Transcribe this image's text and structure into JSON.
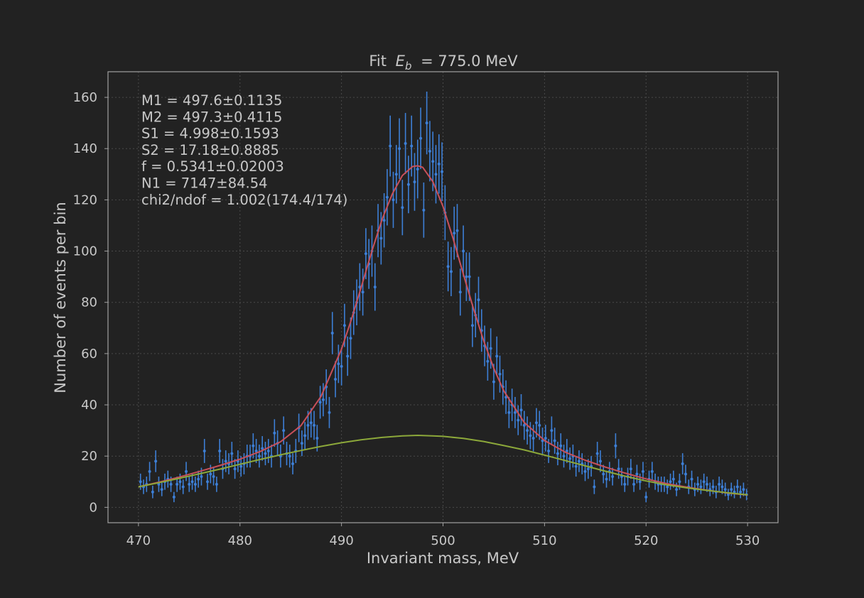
{
  "chart_data": {
    "type": "scatter",
    "title_prefix": "Fit",
    "title_sym": "E",
    "title_sub": "b",
    "title_suffix": "= 775.0 MeV",
    "xlabel": "Invariant mass, MeV",
    "ylabel": "Number of events per bin",
    "xlim": [
      467,
      533
    ],
    "ylim": [
      -6,
      170
    ],
    "xticks": [
      470,
      480,
      490,
      500,
      510,
      520,
      530
    ],
    "yticks": [
      0,
      20,
      40,
      60,
      80,
      100,
      120,
      140,
      160
    ],
    "grid": true,
    "annotations": [
      "M1 = 497.6±0.1135",
      "M2 = 497.3±0.4115",
      "S1 = 4.998±0.1593",
      "S2 = 17.18±0.8885",
      "f = 0.5341±0.02003",
      "N1 =  7147±84.54",
      "chi2/ndof = 1.002(174.4/174)"
    ],
    "series": [
      {
        "kind": "errorbar",
        "color": "#3d7fd6",
        "points": [
          [
            470.2,
            10
          ],
          [
            470.5,
            8
          ],
          [
            470.8,
            9
          ],
          [
            471.1,
            14
          ],
          [
            471.4,
            6
          ],
          [
            471.7,
            18
          ],
          [
            472.0,
            9
          ],
          [
            472.3,
            7
          ],
          [
            472.6,
            10
          ],
          [
            472.9,
            11
          ],
          [
            473.2,
            9
          ],
          [
            473.5,
            4
          ],
          [
            473.8,
            9
          ],
          [
            474.1,
            10
          ],
          [
            474.4,
            8
          ],
          [
            474.7,
            14
          ],
          [
            475.0,
            9
          ],
          [
            475.3,
            10
          ],
          [
            475.6,
            9
          ],
          [
            475.9,
            11
          ],
          [
            476.2,
            12
          ],
          [
            476.5,
            22
          ],
          [
            476.8,
            10
          ],
          [
            477.1,
            13
          ],
          [
            477.4,
            12
          ],
          [
            477.7,
            9
          ],
          [
            478.0,
            22
          ],
          [
            478.3,
            15
          ],
          [
            478.6,
            18
          ],
          [
            478.9,
            17
          ],
          [
            479.2,
            21
          ],
          [
            479.5,
            15
          ],
          [
            479.8,
            18
          ],
          [
            480.1,
            16
          ],
          [
            480.4,
            17
          ],
          [
            480.7,
            20
          ],
          [
            481.0,
            20
          ],
          [
            481.3,
            24
          ],
          [
            481.6,
            22
          ],
          [
            481.9,
            20
          ],
          [
            482.2,
            23
          ],
          [
            482.5,
            21
          ],
          [
            482.8,
            22
          ],
          [
            483.1,
            20
          ],
          [
            483.4,
            29
          ],
          [
            483.7,
            25
          ],
          [
            484.0,
            20
          ],
          [
            484.3,
            30
          ],
          [
            484.6,
            21
          ],
          [
            484.9,
            20
          ],
          [
            485.2,
            17
          ],
          [
            485.5,
            22
          ],
          [
            485.8,
            31
          ],
          [
            486.1,
            25
          ],
          [
            486.4,
            28
          ],
          [
            486.7,
            32
          ],
          [
            487.0,
            33
          ],
          [
            487.3,
            32
          ],
          [
            487.6,
            27
          ],
          [
            487.9,
            41
          ],
          [
            488.2,
            42
          ],
          [
            488.5,
            47
          ],
          [
            488.8,
            37
          ],
          [
            489.1,
            68
          ],
          [
            489.4,
            50
          ],
          [
            489.7,
            56
          ],
          [
            490.0,
            55
          ],
          [
            490.3,
            71
          ],
          [
            490.6,
            59
          ],
          [
            490.9,
            66
          ],
          [
            491.2,
            76
          ],
          [
            491.5,
            80
          ],
          [
            491.8,
            86
          ],
          [
            492.1,
            84
          ],
          [
            492.4,
            99
          ],
          [
            492.7,
            95
          ],
          [
            493.0,
            100
          ],
          [
            493.3,
            86
          ],
          [
            493.6,
            108
          ],
          [
            493.9,
            105
          ],
          [
            494.2,
            112
          ],
          [
            494.5,
            121
          ],
          [
            494.8,
            141
          ],
          [
            495.1,
            120
          ],
          [
            495.4,
            130
          ],
          [
            495.7,
            140
          ],
          [
            496.0,
            117
          ],
          [
            496.3,
            142
          ],
          [
            496.6,
            126
          ],
          [
            496.9,
            141
          ],
          [
            497.2,
            127
          ],
          [
            497.5,
            132
          ],
          [
            497.8,
            144
          ],
          [
            498.1,
            116
          ],
          [
            498.4,
            150
          ],
          [
            498.7,
            139
          ],
          [
            499.0,
            135
          ],
          [
            499.3,
            130
          ],
          [
            499.6,
            134
          ],
          [
            499.9,
            131
          ],
          [
            500.2,
            115
          ],
          [
            500.5,
            94
          ],
          [
            500.8,
            92
          ],
          [
            501.1,
            107
          ],
          [
            501.4,
            108
          ],
          [
            501.7,
            84
          ],
          [
            502.0,
            100
          ],
          [
            502.3,
            90
          ],
          [
            502.6,
            90
          ],
          [
            502.9,
            71
          ],
          [
            503.2,
            75
          ],
          [
            503.5,
            81
          ],
          [
            503.8,
            69
          ],
          [
            504.1,
            63
          ],
          [
            504.4,
            57
          ],
          [
            504.7,
            62
          ],
          [
            505.0,
            49
          ],
          [
            505.3,
            59
          ],
          [
            505.6,
            52
          ],
          [
            505.9,
            47
          ],
          [
            506.2,
            43
          ],
          [
            506.5,
            37
          ],
          [
            506.8,
            40
          ],
          [
            507.1,
            37
          ],
          [
            507.4,
            34
          ],
          [
            507.7,
            38
          ],
          [
            508.0,
            32
          ],
          [
            508.3,
            30
          ],
          [
            508.6,
            28
          ],
          [
            508.9,
            27
          ],
          [
            509.2,
            33
          ],
          [
            509.5,
            32
          ],
          [
            509.8,
            26
          ],
          [
            510.1,
            27
          ],
          [
            510.4,
            22
          ],
          [
            510.7,
            30
          ],
          [
            511.0,
            26
          ],
          [
            511.3,
            21
          ],
          [
            511.6,
            24
          ],
          [
            511.9,
            20
          ],
          [
            512.2,
            22
          ],
          [
            512.5,
            19
          ],
          [
            512.8,
            20
          ],
          [
            513.1,
            16
          ],
          [
            513.4,
            18
          ],
          [
            513.7,
            17
          ],
          [
            514.0,
            14
          ],
          [
            514.3,
            15
          ],
          [
            514.6,
            16
          ],
          [
            514.9,
            8
          ],
          [
            515.2,
            21
          ],
          [
            515.5,
            18
          ],
          [
            515.8,
            13
          ],
          [
            516.1,
            11
          ],
          [
            516.4,
            14
          ],
          [
            516.7,
            12
          ],
          [
            517.0,
            24
          ],
          [
            517.3,
            15
          ],
          [
            517.6,
            12
          ],
          [
            517.9,
            9
          ],
          [
            518.2,
            12
          ],
          [
            518.5,
            15
          ],
          [
            518.8,
            9
          ],
          [
            519.1,
            13
          ],
          [
            519.4,
            10
          ],
          [
            519.7,
            14
          ],
          [
            520.0,
            4
          ],
          [
            520.3,
            11
          ],
          [
            520.6,
            14
          ],
          [
            520.9,
            10
          ],
          [
            521.2,
            9
          ],
          [
            521.5,
            9
          ],
          [
            521.8,
            9
          ],
          [
            522.1,
            8
          ],
          [
            522.4,
            10
          ],
          [
            522.7,
            11
          ],
          [
            523.0,
            7
          ],
          [
            523.3,
            10
          ],
          [
            523.6,
            17
          ],
          [
            523.9,
            13
          ],
          [
            524.2,
            8
          ],
          [
            524.5,
            11
          ],
          [
            524.8,
            7
          ],
          [
            525.1,
            9
          ],
          [
            525.4,
            8
          ],
          [
            525.7,
            10
          ],
          [
            526.0,
            9
          ],
          [
            526.3,
            7
          ],
          [
            526.6,
            8
          ],
          [
            526.9,
            6
          ],
          [
            527.2,
            9
          ],
          [
            527.5,
            8
          ],
          [
            527.8,
            7
          ],
          [
            528.1,
            5
          ],
          [
            528.4,
            7
          ],
          [
            528.7,
            6
          ],
          [
            529.0,
            8
          ],
          [
            529.3,
            6
          ],
          [
            529.6,
            7
          ],
          [
            529.9,
            5
          ]
        ]
      },
      {
        "kind": "curve",
        "color": "#c8505a",
        "x": [
          470,
          472,
          474,
          476,
          478,
          480,
          482,
          484,
          486,
          488,
          490,
          491,
          492,
          493,
          494,
          495,
          496,
          497,
          497.5,
          498,
          499,
          500,
          501,
          502,
          503,
          504,
          505,
          506,
          508,
          510,
          512,
          514,
          516,
          518,
          520,
          522,
          524,
          526,
          528,
          530
        ],
        "y": [
          8.0,
          9.8,
          11.8,
          14.0,
          16.3,
          18.8,
          21.8,
          25.6,
          31.9,
          43.4,
          61.7,
          73.6,
          86.7,
          100.1,
          112.4,
          122.3,
          129.5,
          133.0,
          133.3,
          132.7,
          127.1,
          117.4,
          104.8,
          91.0,
          77.5,
          65.0,
          54.3,
          45.4,
          33.1,
          26.1,
          21.6,
          18.4,
          15.7,
          13.3,
          11.1,
          9.3,
          7.9,
          6.7,
          5.6,
          4.8
        ]
      },
      {
        "kind": "curve",
        "color": "#8ca83a",
        "x": [
          470,
          472,
          474,
          476,
          478,
          480,
          482,
          484,
          486,
          488,
          490,
          492,
          494,
          496,
          497.5,
          499,
          500,
          502,
          504,
          506,
          508,
          510,
          512,
          514,
          516,
          518,
          520,
          522,
          524,
          526,
          528,
          530
        ],
        "y": [
          8.0,
          9.6,
          11.3,
          13.1,
          14.9,
          16.8,
          18.7,
          20.5,
          22.2,
          23.8,
          25.2,
          26.4,
          27.3,
          27.9,
          28.1,
          27.9,
          27.7,
          26.9,
          25.7,
          24.1,
          22.4,
          20.4,
          18.3,
          16.2,
          14.1,
          12.1,
          10.3,
          8.8,
          7.6,
          6.6,
          5.7,
          4.9
        ]
      }
    ]
  }
}
